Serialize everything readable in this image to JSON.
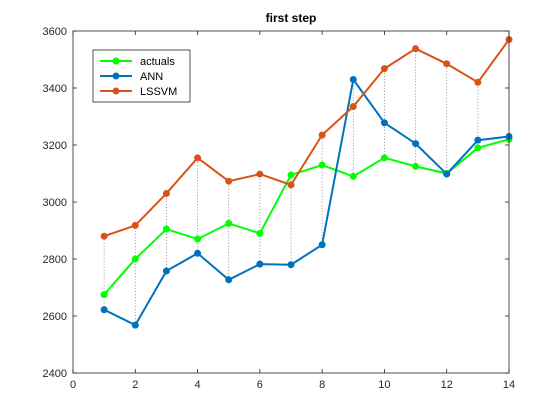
{
  "chart_data": {
    "type": "line",
    "title": "first step",
    "xlabel": "",
    "ylabel": "",
    "xlim": [
      0,
      14
    ],
    "ylim": [
      2400,
      3600
    ],
    "xticks": [
      0,
      2,
      4,
      6,
      8,
      10,
      12,
      14
    ],
    "yticks": [
      2400,
      2600,
      2800,
      3000,
      3200,
      3400,
      3600
    ],
    "x": [
      1,
      2,
      3,
      4,
      5,
      6,
      7,
      8,
      9,
      10,
      11,
      12,
      13,
      14
    ],
    "grid": false,
    "legend_position": "top-left",
    "error_lines": "dotted vertical lines between min and max series at each x",
    "series": [
      {
        "name": "actuals",
        "color": "#00ff00",
        "values": [
          2675,
          2800,
          2905,
          2870,
          2925,
          2890,
          3095,
          3130,
          3090,
          3155,
          3125,
          3100,
          3190,
          3220
        ]
      },
      {
        "name": "ANN",
        "color": "#0072bd",
        "values": [
          2622,
          2568,
          2758,
          2820,
          2727,
          2782,
          2780,
          2850,
          3430,
          3278,
          3205,
          3098,
          3217,
          3230
        ]
      },
      {
        "name": "LSSVM",
        "color": "#d95319",
        "values": [
          2880,
          2918,
          3030,
          3155,
          3073,
          3098,
          3060,
          3235,
          3335,
          3468,
          3538,
          3485,
          3420,
          3570
        ]
      }
    ]
  }
}
